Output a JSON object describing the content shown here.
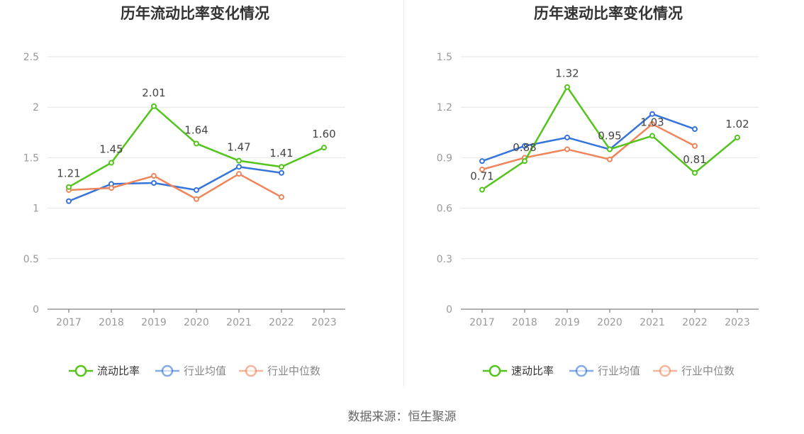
{
  "source": "数据来源：恒生聚源",
  "colors": {
    "main": "#52c41a",
    "avg": "#3574db",
    "median": "#f0845a",
    "axis_text": "#999999",
    "grid": "#e6e6e6"
  },
  "chart_data": [
    {
      "type": "line",
      "title": "历年流动比率变化情况",
      "categories": [
        "2017",
        "2018",
        "2019",
        "2020",
        "2021",
        "2022",
        "2023"
      ],
      "ylim": [
        0,
        2.5
      ],
      "yticks": [
        "0",
        "0.5",
        "1",
        "1.5",
        "2",
        "2.5"
      ],
      "ytick_values": [
        0,
        0.5,
        1,
        1.5,
        2,
        2.5
      ],
      "grid": true,
      "legend_position": "bottom-center",
      "series": [
        {
          "name": "流动比率",
          "color": "#52c41a",
          "values": [
            1.21,
            1.45,
            2.01,
            1.64,
            1.47,
            1.41,
            1.6
          ],
          "labels": [
            "1.21",
            "1.45",
            "2.01",
            "1.64",
            "1.47",
            "1.41",
            "1.60"
          ]
        },
        {
          "name": "行业均值",
          "color": "#3574db",
          "values": [
            1.07,
            1.24,
            1.25,
            1.18,
            1.41,
            1.35,
            null
          ]
        },
        {
          "name": "行业中位数",
          "color": "#f0845a",
          "values": [
            1.18,
            1.2,
            1.32,
            1.09,
            1.34,
            1.11,
            null
          ]
        }
      ]
    },
    {
      "type": "line",
      "title": "历年速动比率变化情况",
      "categories": [
        "2017",
        "2018",
        "2019",
        "2020",
        "2021",
        "2022",
        "2023"
      ],
      "ylim": [
        0,
        1.5
      ],
      "yticks": [
        "0",
        "0.3",
        "0.6",
        "0.9",
        "1.2",
        "1.5"
      ],
      "ytick_values": [
        0,
        0.3,
        0.6,
        0.9,
        1.2,
        1.5
      ],
      "grid": true,
      "legend_position": "bottom-center",
      "series": [
        {
          "name": "速动比率",
          "color": "#52c41a",
          "values": [
            0.71,
            0.88,
            1.32,
            0.95,
            1.03,
            0.81,
            1.02
          ],
          "labels": [
            "0.71",
            "0.88",
            "1.32",
            "0.95",
            "1.03",
            "0.81",
            "1.02"
          ]
        },
        {
          "name": "行业均值",
          "color": "#3574db",
          "values": [
            0.88,
            0.97,
            1.02,
            0.95,
            1.16,
            1.07,
            null
          ]
        },
        {
          "name": "行业中位数",
          "color": "#f0845a",
          "values": [
            0.83,
            0.9,
            0.95,
            0.89,
            1.1,
            0.97,
            null
          ]
        }
      ]
    }
  ]
}
